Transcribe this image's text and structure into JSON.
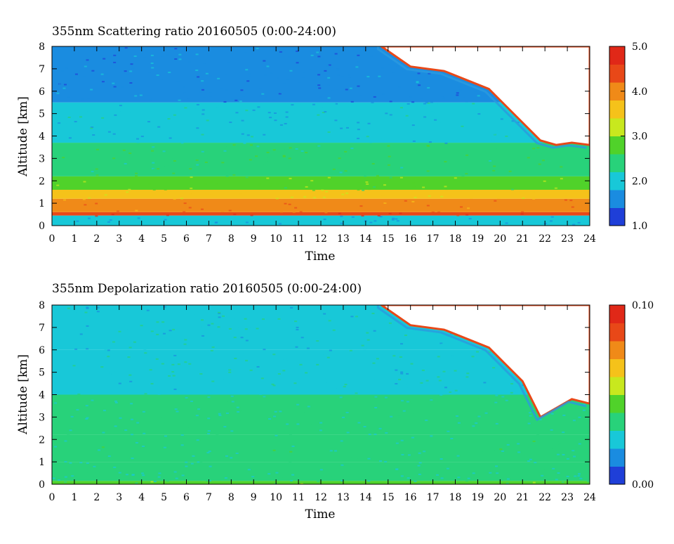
{
  "chart_data": [
    {
      "type": "heatmap",
      "title": "355nm Scattering ratio  20160505 (0:00-24:00)",
      "xlabel": "Time",
      "ylabel": "Altitude [km]",
      "xlim": [
        0,
        24
      ],
      "ylim": [
        0,
        8
      ],
      "x_ticks": [
        "0",
        "1",
        "2",
        "3",
        "4",
        "5",
        "6",
        "7",
        "8",
        "9",
        "10",
        "11",
        "12",
        "13",
        "14",
        "15",
        "16",
        "17",
        "18",
        "19",
        "20",
        "21",
        "22",
        "23",
        "24"
      ],
      "y_ticks": [
        "0",
        "1",
        "2",
        "3",
        "4",
        "5",
        "6",
        "7",
        "8"
      ],
      "colorbar": {
        "min": 1.0,
        "max": 5.0,
        "tick_labels": [
          "1.0",
          "2.0",
          "3.0",
          "4.0",
          "5.0"
        ],
        "tick_values": [
          1.0,
          2.0,
          3.0,
          4.0,
          5.0
        ],
        "colors": [
          "#1f3fd8",
          "#1a8ce0",
          "#18c8d8",
          "#28d27a",
          "#50d22a",
          "#c8e81e",
          "#f5c21a",
          "#f08a18",
          "#e84818",
          "#e02818"
        ]
      },
      "layers": [
        {
          "alt_range": [
            0.0,
            0.45
          ],
          "value": 1.8
        },
        {
          "alt_range": [
            0.45,
            0.6
          ],
          "value": 4.5
        },
        {
          "alt_range": [
            0.6,
            1.2
          ],
          "value": 4.1
        },
        {
          "alt_range": [
            1.2,
            1.6
          ],
          "value": 3.4
        },
        {
          "alt_range": [
            1.6,
            2.2
          ],
          "value": 2.9
        },
        {
          "alt_range": [
            2.2,
            3.7
          ],
          "value": 2.5
        },
        {
          "alt_range": [
            3.7,
            5.5
          ],
          "value": 1.95
        },
        {
          "alt_range": [
            5.5,
            8.0
          ],
          "value": 1.6
        }
      ],
      "cloud_top_profile": {
        "time": [
          14.7,
          16.0,
          17.5,
          18.5,
          19.5,
          20.2,
          21.0,
          21.8,
          22.5,
          23.2,
          24.0
        ],
        "altitude": [
          8.0,
          7.1,
          6.9,
          6.5,
          6.1,
          5.4,
          4.6,
          3.8,
          3.6,
          3.7,
          3.6
        ]
      }
    },
    {
      "type": "heatmap",
      "title": "355nm Depolarization ratio  20160505 (0:00-24:00)",
      "xlabel": "Time",
      "ylabel": "Altitude [km]",
      "xlim": [
        0,
        24
      ],
      "ylim": [
        0,
        8
      ],
      "x_ticks": [
        "0",
        "1",
        "2",
        "3",
        "4",
        "5",
        "6",
        "7",
        "8",
        "9",
        "10",
        "11",
        "12",
        "13",
        "14",
        "15",
        "16",
        "17",
        "18",
        "19",
        "20",
        "21",
        "22",
        "23",
        "24"
      ],
      "y_ticks": [
        "0",
        "1",
        "2",
        "3",
        "4",
        "5",
        "6",
        "7",
        "8"
      ],
      "colorbar": {
        "min": 0.0,
        "max": 0.1,
        "tick_labels": [
          "0.00",
          "0.10"
        ],
        "tick_values": [
          0.0,
          0.1
        ],
        "colors": [
          "#1f3fd8",
          "#1a8ce0",
          "#18c8d8",
          "#28d27a",
          "#50d22a",
          "#c8e81e",
          "#f5c21a",
          "#f08a18",
          "#e84818",
          "#e02818"
        ]
      },
      "layers": [
        {
          "alt_range": [
            0.0,
            0.15
          ],
          "value": 0.045
        },
        {
          "alt_range": [
            0.15,
            1.0
          ],
          "value": 0.03
        },
        {
          "alt_range": [
            1.0,
            2.2
          ],
          "value": 0.032
        },
        {
          "alt_range": [
            2.2,
            4.0
          ],
          "value": 0.03
        },
        {
          "alt_range": [
            4.0,
            6.0
          ],
          "value": 0.028
        },
        {
          "alt_range": [
            6.0,
            8.0
          ],
          "value": 0.026
        }
      ],
      "cloud_top_profile": {
        "time": [
          14.7,
          16.0,
          17.5,
          18.5,
          19.5,
          20.2,
          21.0,
          21.8,
          22.5,
          23.2,
          24.0
        ],
        "altitude": [
          8.0,
          7.1,
          6.9,
          6.5,
          6.1,
          5.4,
          4.6,
          3.0,
          3.4,
          3.8,
          3.6
        ]
      }
    }
  ]
}
